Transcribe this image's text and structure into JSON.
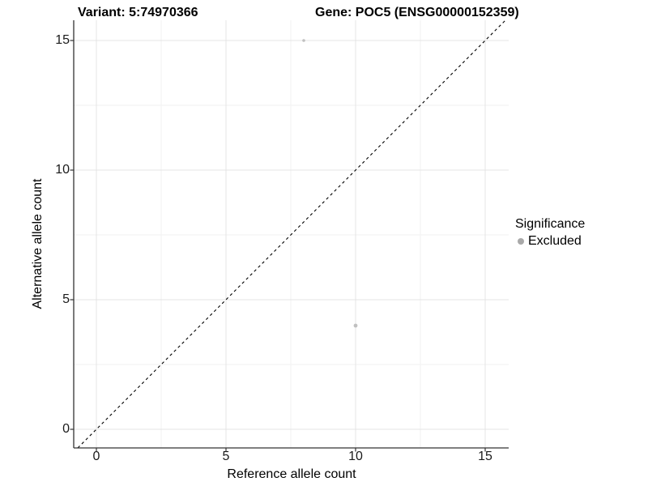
{
  "chart_data": {
    "type": "scatter",
    "title_left": "Variant: 5:74970366",
    "title_right": "Gene: POC5 (ENSG00000152359)",
    "xlabel": "Reference allele count",
    "ylabel": "Alternative allele count",
    "xlim": [
      -0.9,
      15.9
    ],
    "ylim": [
      -0.75,
      15.8
    ],
    "x_ticks": [
      0,
      5,
      10,
      15
    ],
    "y_ticks": [
      0,
      5,
      10,
      15
    ],
    "x_minor": [
      2.5,
      7.5,
      12.5
    ],
    "y_minor": [
      2.5,
      7.5,
      12.5
    ],
    "grid": true,
    "identity_line": {
      "equation": "y = x",
      "style": "dashed",
      "color": "#000000"
    },
    "series": [
      {
        "name": "Excluded",
        "color": "#c0c0c0",
        "points": [
          {
            "x": 8,
            "y": 15,
            "size": 1.8
          },
          {
            "x": 10,
            "y": 4,
            "size": 2.4
          }
        ]
      }
    ],
    "legend": {
      "title": "Significance",
      "position": "right",
      "items": [
        {
          "label": "Excluded",
          "color": "#a9a9a9"
        }
      ]
    }
  },
  "colors": {
    "background": "#ffffff",
    "grid_major": "#e4e4e4",
    "grid_minor": "#f2f2f2",
    "axis_line": "#333333",
    "tick_mark": "#333333",
    "tick_label": "#1a1a1a",
    "dashed_line": "#000000"
  }
}
